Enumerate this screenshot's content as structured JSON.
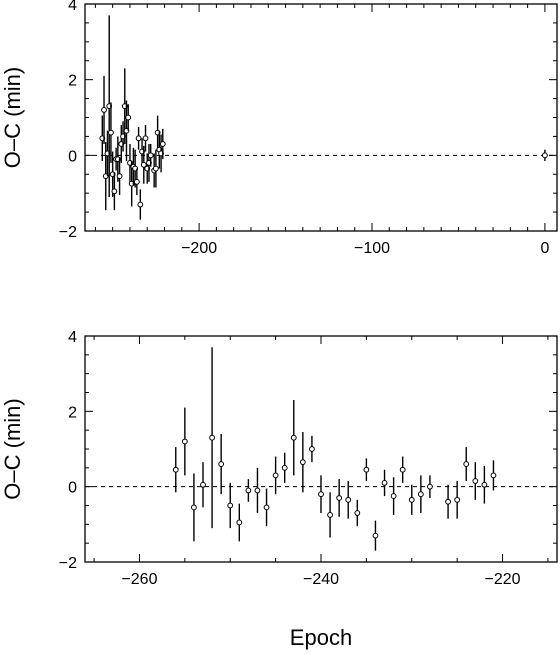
{
  "chart_data": [
    {
      "type": "scatter",
      "ylabel": "O–C (min)",
      "xlabel": "",
      "xlim": [
        -266,
        7
      ],
      "ylim": [
        -2,
        4
      ],
      "xticks": [
        -200,
        -100,
        0
      ],
      "xtick_labels": [
        "−200",
        "−100",
        "0"
      ],
      "yticks": [
        -2,
        0,
        2,
        4
      ],
      "ytick_labels": [
        "−2",
        "0",
        "2",
        "4"
      ],
      "reference_line": {
        "y": 0,
        "style": "dashed"
      },
      "series": [
        {
          "points": [
            {
              "x": -256,
              "y": 0.45,
              "err": 0.6
            },
            {
              "x": -255,
              "y": 1.2,
              "err": 0.9
            },
            {
              "x": -254,
              "y": -0.55,
              "err": 0.9
            },
            {
              "x": -253,
              "y": 0.05,
              "err": 0.6
            },
            {
              "x": -252,
              "y": 1.3,
              "err": 2.4
            },
            {
              "x": -251,
              "y": 0.6,
              "err": 0.8
            },
            {
              "x": -250,
              "y": -0.5,
              "err": 0.6
            },
            {
              "x": -249,
              "y": -0.95,
              "err": 0.5
            },
            {
              "x": -248,
              "y": -0.1,
              "err": 0.3
            },
            {
              "x": -247,
              "y": -0.1,
              "err": 0.6
            },
            {
              "x": -246,
              "y": -0.55,
              "err": 0.5
            },
            {
              "x": -245,
              "y": 0.3,
              "err": 0.5
            },
            {
              "x": -244,
              "y": 0.5,
              "err": 0.4
            },
            {
              "x": -243,
              "y": 1.3,
              "err": 1.0
            },
            {
              "x": -242,
              "y": 0.65,
              "err": 0.8
            },
            {
              "x": -241,
              "y": 1.0,
              "err": 0.35
            },
            {
              "x": -240,
              "y": -0.2,
              "err": 0.5
            },
            {
              "x": -239,
              "y": -0.75,
              "err": 0.6
            },
            {
              "x": -238,
              "y": -0.3,
              "err": 0.5
            },
            {
              "x": -237,
              "y": -0.35,
              "err": 0.5
            },
            {
              "x": -236,
              "y": -0.7,
              "err": 0.35
            },
            {
              "x": -235,
              "y": 0.45,
              "err": 0.3
            },
            {
              "x": -234,
              "y": -1.3,
              "err": 0.4
            },
            {
              "x": -233,
              "y": 0.1,
              "err": 0.35
            },
            {
              "x": -232,
              "y": -0.25,
              "err": 0.5
            },
            {
              "x": -231,
              "y": 0.45,
              "err": 0.35
            },
            {
              "x": -230,
              "y": -0.35,
              "err": 0.4
            },
            {
              "x": -229,
              "y": -0.2,
              "err": 0.5
            },
            {
              "x": -228,
              "y": 0.0,
              "err": 0.3
            },
            {
              "x": -226,
              "y": -0.4,
              "err": 0.45
            },
            {
              "x": -225,
              "y": -0.35,
              "err": 0.5
            },
            {
              "x": -224,
              "y": 0.6,
              "err": 0.45
            },
            {
              "x": -223,
              "y": 0.15,
              "err": 0.5
            },
            {
              "x": -222,
              "y": 0.05,
              "err": 0.5
            },
            {
              "x": -221,
              "y": 0.3,
              "err": 0.4
            },
            {
              "x": 0,
              "y": 0.0,
              "err": 0.15
            }
          ]
        }
      ]
    },
    {
      "type": "scatter",
      "ylabel": "O–C (min)",
      "xlabel": "Epoch",
      "xlim": [
        -266,
        -214
      ],
      "ylim": [
        -2,
        4
      ],
      "xticks": [
        -260,
        -240,
        -220
      ],
      "xtick_labels": [
        "−260",
        "−240",
        "−220"
      ],
      "yticks": [
        -2,
        0,
        2,
        4
      ],
      "ytick_labels": [
        "−2",
        "0",
        "2",
        "4"
      ],
      "reference_line": {
        "y": 0,
        "style": "dashed"
      },
      "series": [
        {
          "points": [
            {
              "x": -256,
              "y": 0.45,
              "err": 0.6
            },
            {
              "x": -255,
              "y": 1.2,
              "err": 0.9
            },
            {
              "x": -254,
              "y": -0.55,
              "err": 0.9
            },
            {
              "x": -253,
              "y": 0.05,
              "err": 0.6
            },
            {
              "x": -252,
              "y": 1.3,
              "err": 2.4
            },
            {
              "x": -251,
              "y": 0.6,
              "err": 0.8
            },
            {
              "x": -250,
              "y": -0.5,
              "err": 0.6
            },
            {
              "x": -249,
              "y": -0.95,
              "err": 0.5
            },
            {
              "x": -248,
              "y": -0.1,
              "err": 0.3
            },
            {
              "x": -247,
              "y": -0.1,
              "err": 0.6
            },
            {
              "x": -246,
              "y": -0.55,
              "err": 0.5
            },
            {
              "x": -245,
              "y": 0.3,
              "err": 0.5
            },
            {
              "x": -244,
              "y": 0.5,
              "err": 0.4
            },
            {
              "x": -243,
              "y": 1.3,
              "err": 1.0
            },
            {
              "x": -242,
              "y": 0.65,
              "err": 0.8
            },
            {
              "x": -241,
              "y": 1.0,
              "err": 0.35
            },
            {
              "x": -240,
              "y": -0.2,
              "err": 0.5
            },
            {
              "x": -239,
              "y": -0.75,
              "err": 0.6
            },
            {
              "x": -238,
              "y": -0.3,
              "err": 0.5
            },
            {
              "x": -237,
              "y": -0.35,
              "err": 0.5
            },
            {
              "x": -236,
              "y": -0.7,
              "err": 0.35
            },
            {
              "x": -235,
              "y": 0.45,
              "err": 0.3
            },
            {
              "x": -234,
              "y": -1.3,
              "err": 0.4
            },
            {
              "x": -233,
              "y": 0.1,
              "err": 0.35
            },
            {
              "x": -232,
              "y": -0.25,
              "err": 0.5
            },
            {
              "x": -231,
              "y": 0.45,
              "err": 0.35
            },
            {
              "x": -230,
              "y": -0.35,
              "err": 0.4
            },
            {
              "x": -229,
              "y": -0.2,
              "err": 0.5
            },
            {
              "x": -228,
              "y": 0.0,
              "err": 0.3
            },
            {
              "x": -226,
              "y": -0.4,
              "err": 0.45
            },
            {
              "x": -225,
              "y": -0.35,
              "err": 0.5
            },
            {
              "x": -224,
              "y": 0.6,
              "err": 0.45
            },
            {
              "x": -223,
              "y": 0.15,
              "err": 0.5
            },
            {
              "x": -222,
              "y": 0.05,
              "err": 0.5
            },
            {
              "x": -221,
              "y": 0.3,
              "err": 0.4
            }
          ]
        }
      ]
    }
  ]
}
